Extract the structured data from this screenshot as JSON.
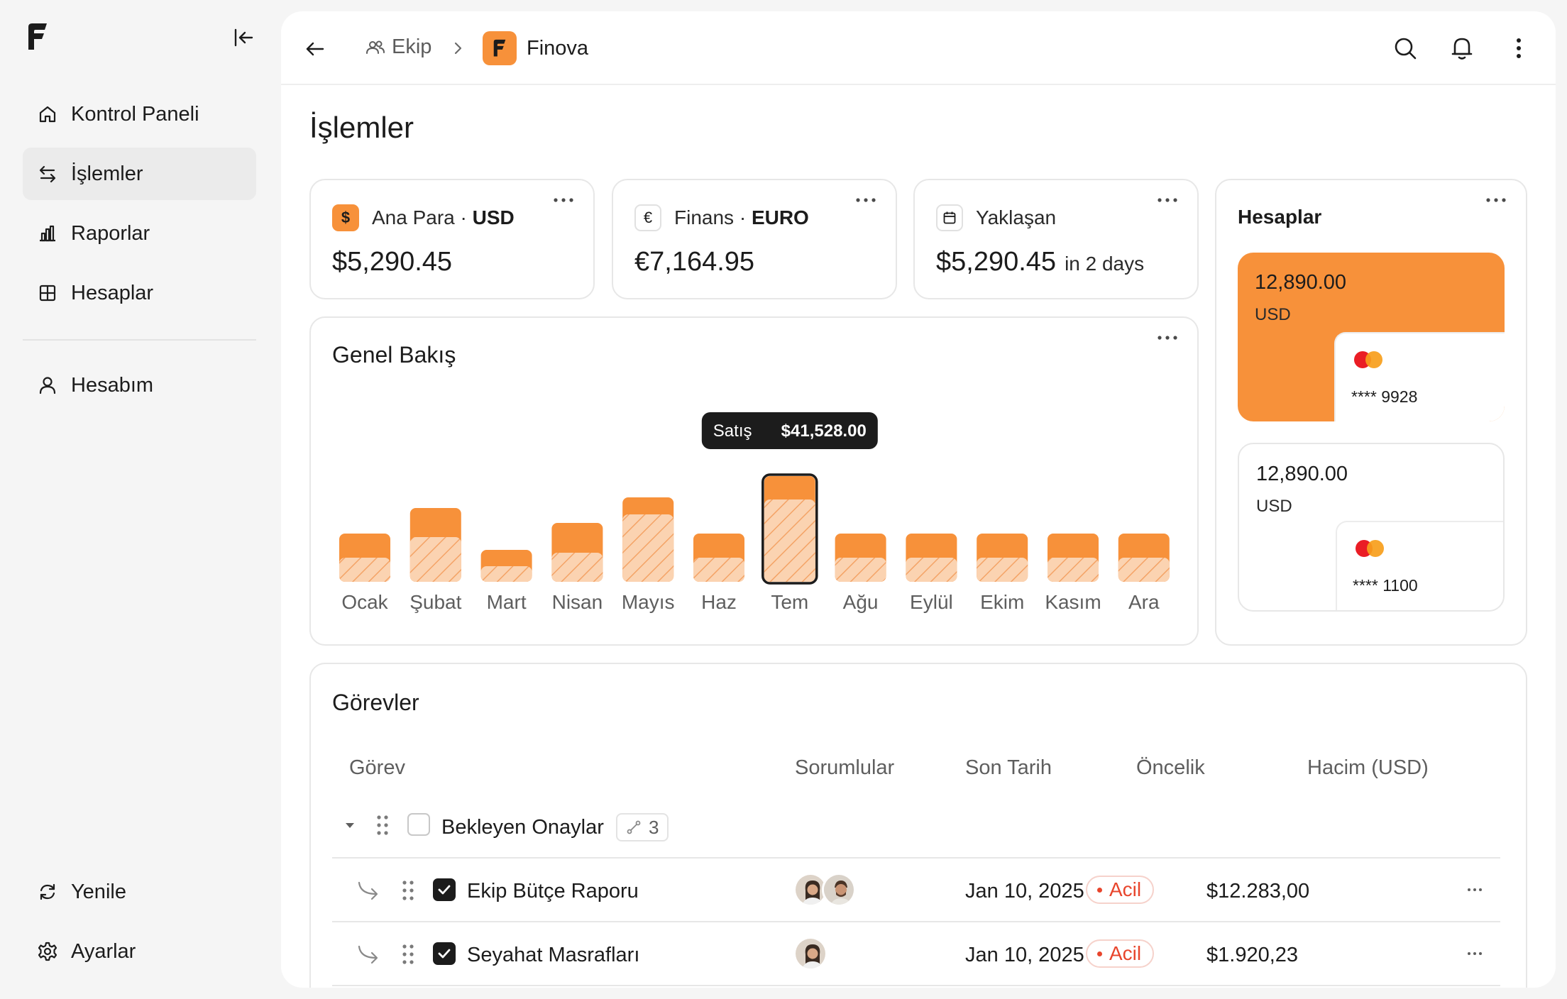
{
  "sidebar": {
    "nav": [
      {
        "label": "Kontrol Paneli",
        "icon": "home-icon"
      },
      {
        "label": "İşlemler",
        "icon": "transfer-icon",
        "active": true
      },
      {
        "label": "Raporlar",
        "icon": "bar-chart-icon"
      },
      {
        "label": "Hesaplar",
        "icon": "grid-icon"
      }
    ],
    "profile": {
      "label": "Hesabım",
      "icon": "user-icon"
    },
    "bottom": [
      {
        "label": "Yenile",
        "icon": "refresh-icon"
      },
      {
        "label": "Ayarlar",
        "icon": "gear-icon"
      }
    ]
  },
  "topbar": {
    "team_label": "Ekip",
    "app_label": "Finova"
  },
  "page": {
    "title": "İşlemler"
  },
  "stats": [
    {
      "name": "Ana Para",
      "sep": " · ",
      "currency": "USD",
      "value": "$5,290.45",
      "icon_text": "$"
    },
    {
      "name": "Finans",
      "sep": " · ",
      "currency": "EURO",
      "value": "€7,164.95",
      "icon_text": "€"
    },
    {
      "name": "Yaklaşan",
      "value": "$5,290.45",
      "suffix": "in 2 days"
    }
  ],
  "overview": {
    "title": "Genel Bakış",
    "tooltip": {
      "label": "Satış",
      "value": "$41,528.00"
    }
  },
  "chart_data": {
    "type": "bar",
    "title": "Genel Bakış",
    "categories": [
      "Ocak",
      "Şubat",
      "Mart",
      "Nisan",
      "Mayıs",
      "Haz",
      "Tem",
      "Ağu",
      "Eylül",
      "Ekim",
      "Kasım",
      "Ara"
    ],
    "series": [
      {
        "values": [
          68,
          104,
          45,
          83,
          119,
          68,
          149,
          68,
          68,
          68,
          68,
          68
        ]
      },
      {
        "values": [
          34,
          63,
          22,
          41,
          95,
          34,
          116,
          34,
          34,
          34,
          34,
          34
        ]
      }
    ],
    "highlight_index": 6,
    "grid": false,
    "colors": {
      "bar": "#f7913a",
      "hatch": "#fbc9a0",
      "highlight_outline": "#1c1c1c"
    }
  },
  "accounts": {
    "title": "Hesaplar",
    "cards": [
      {
        "amount": "12,890.00",
        "currency": "USD",
        "number": "**** 9928"
      },
      {
        "amount": "12,890.00",
        "currency": "USD",
        "number": "**** 1100"
      }
    ]
  },
  "tasks": {
    "title": "Görevler",
    "columns": [
      "Görev",
      "Sorumlular",
      "Son Tarih",
      "Öncelik",
      "Hacim (USD)"
    ],
    "group": {
      "name": "Bekleyen Onaylar",
      "count": "3"
    },
    "rows": [
      {
        "name": "Ekip Bütçe Raporu",
        "date": "Jan 10, 2025",
        "priority": "Acil",
        "amount": "$12.283,00"
      },
      {
        "name": "Seyahat Masrafları",
        "date": "Jan 10, 2025",
        "priority": "Acil",
        "amount": "$1.920,23"
      }
    ]
  },
  "colors": {
    "accent": "#f7913a",
    "urgent": "#e8452c",
    "ink": "#1c1c1c"
  }
}
